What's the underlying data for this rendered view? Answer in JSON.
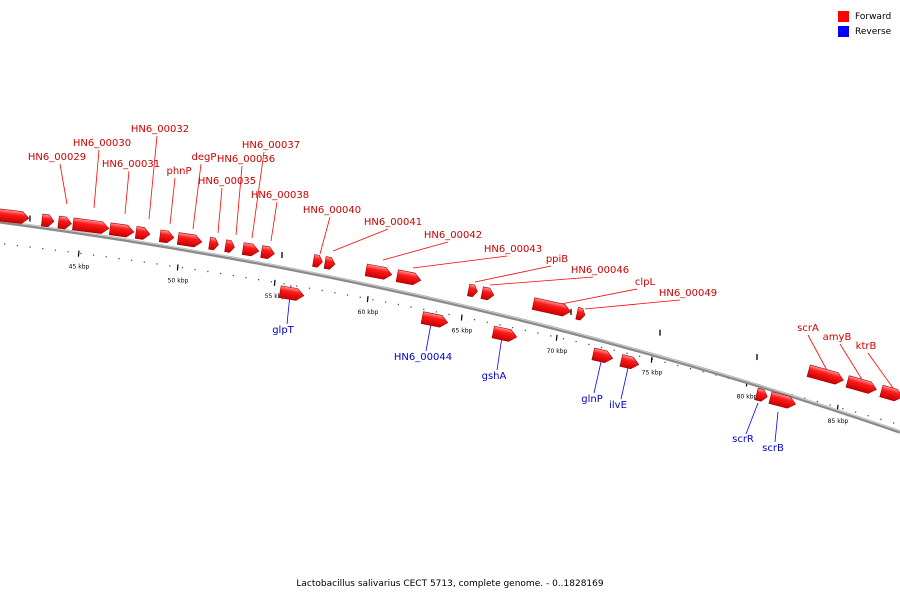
{
  "legend": {
    "items": [
      {
        "label": "Forward",
        "color": "#ff0000"
      },
      {
        "label": "Reverse",
        "color": "#0000ff"
      }
    ]
  },
  "caption": "Lactobacillus salivarius CECT 5713, complete genome. - 0..1828169",
  "scale": {
    "ticks": [
      {
        "label": "45 kbp"
      },
      {
        "label": "50 kbp"
      },
      {
        "label": "55 kbp"
      },
      {
        "label": "60 kbp"
      },
      {
        "label": "65 kbp"
      },
      {
        "label": "70 kbp"
      },
      {
        "label": "75 kbp"
      },
      {
        "label": "80 kbp"
      },
      {
        "label": "85 kbp"
      }
    ]
  },
  "forward_genes": [
    {
      "label": "HN6_00029"
    },
    {
      "label": "HN6_00030"
    },
    {
      "label": "HN6_00031"
    },
    {
      "label": "HN6_00032"
    },
    {
      "label": "phnP"
    },
    {
      "label": "degP"
    },
    {
      "label": "HN6_00035"
    },
    {
      "label": "HN6_00036"
    },
    {
      "label": "HN6_00037"
    },
    {
      "label": "HN6_00038"
    },
    {
      "label": "HN6_00040"
    },
    {
      "label": "HN6_00041"
    },
    {
      "label": "HN6_00042"
    },
    {
      "label": "HN6_00043"
    },
    {
      "label": "ppiB"
    },
    {
      "label": "HN6_00046"
    },
    {
      "label": "clpL"
    },
    {
      "label": "HN6_00049"
    },
    {
      "label": "scrA"
    },
    {
      "label": "amyB"
    },
    {
      "label": "ktrB"
    }
  ],
  "reverse_genes": [
    {
      "label": "glpT"
    },
    {
      "label": "HN6_00044"
    },
    {
      "label": "gshA"
    },
    {
      "label": "glnP"
    },
    {
      "label": "ilvE"
    },
    {
      "label": "scrR"
    },
    {
      "label": "scrB"
    }
  ]
}
